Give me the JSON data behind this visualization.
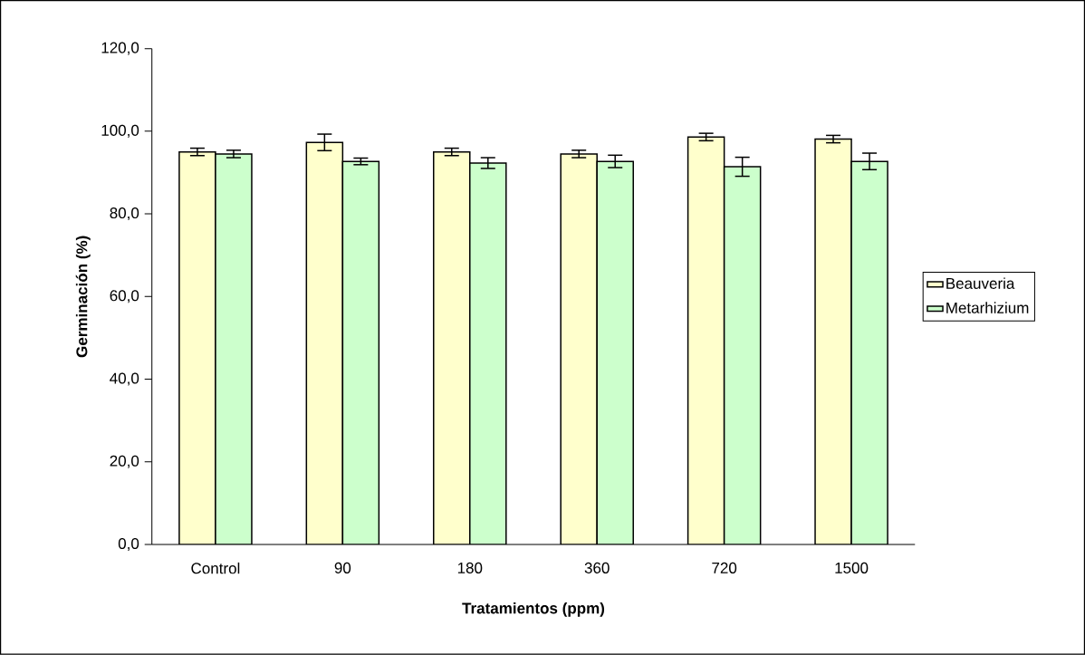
{
  "chart_data": {
    "type": "bar",
    "xlabel": "Tratamientos (ppm)",
    "ylabel": "Germinación (%)",
    "categories": [
      "Control",
      "90",
      "180",
      "360",
      "720",
      "1500"
    ],
    "series": [
      {
        "name": "Beauveria",
        "color": "#ffffcc",
        "values": [
          95.0,
          97.3,
          95.0,
          94.5,
          98.6,
          98.1
        ],
        "errors": [
          0.9,
          2.0,
          0.9,
          0.9,
          0.9,
          0.9
        ]
      },
      {
        "name": "Metarhizium",
        "color": "#ccffcc",
        "values": [
          94.5,
          92.7,
          92.3,
          92.7,
          91.4,
          92.7
        ],
        "errors": [
          0.9,
          0.8,
          1.3,
          1.5,
          2.3,
          2.0
        ]
      }
    ],
    "ylim": [
      0,
      120
    ],
    "yticks": [
      {
        "value": 0,
        "label": "0,0"
      },
      {
        "value": 20,
        "label": "20,0"
      },
      {
        "value": 40,
        "label": "40,0"
      },
      {
        "value": 60,
        "label": "60,0"
      },
      {
        "value": 80,
        "label": "80,0"
      },
      {
        "value": 100,
        "label": "100,0"
      },
      {
        "value": 120,
        "label": "120,0"
      }
    ],
    "grid": false,
    "legend": "right"
  }
}
